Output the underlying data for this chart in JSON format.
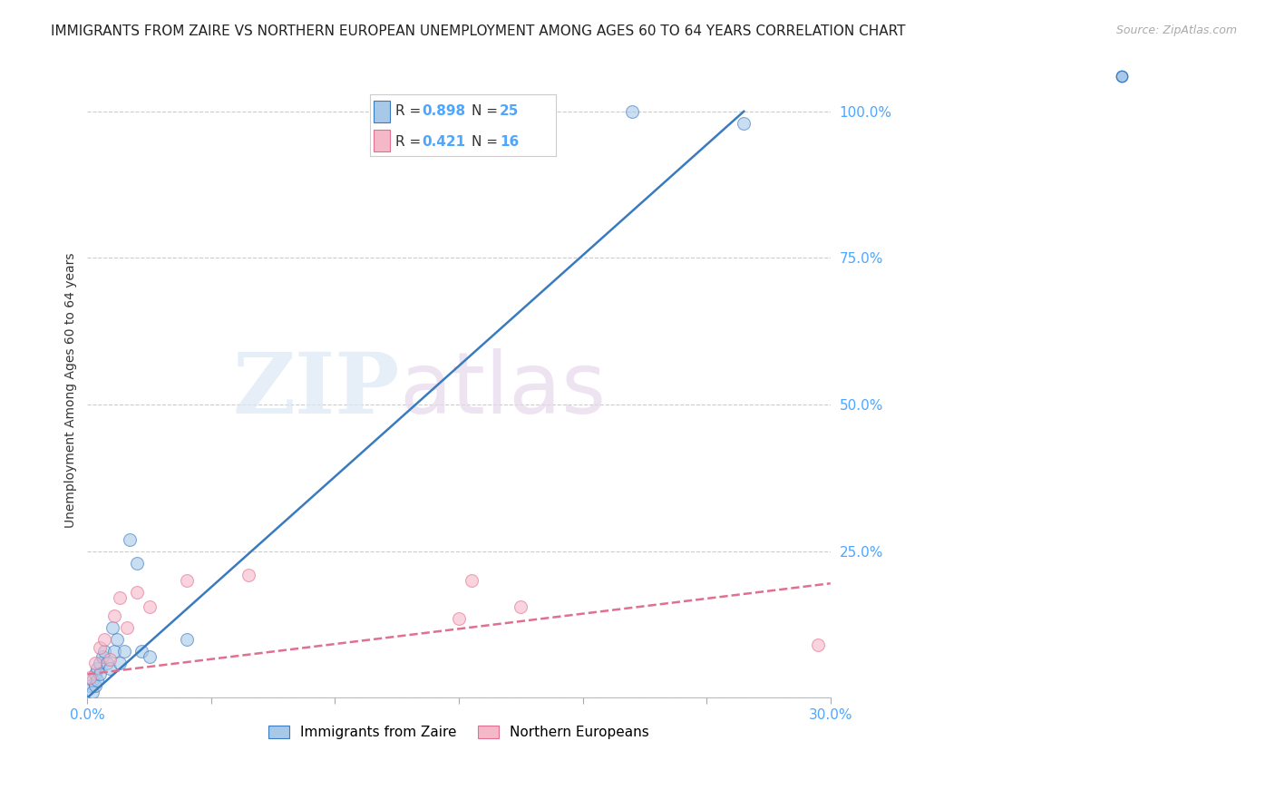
{
  "title": "IMMIGRANTS FROM ZAIRE VS NORTHERN EUROPEAN UNEMPLOYMENT AMONG AGES 60 TO 64 YEARS CORRELATION CHART",
  "source": "Source: ZipAtlas.com",
  "tick_color": "#4da6ff",
  "ylabel": "Unemployment Among Ages 60 to 64 years",
  "x_tick_labels_shown": [
    "0.0%",
    "",
    "",
    "",
    "",
    "",
    "30.0%"
  ],
  "x_tick_values": [
    0.0,
    0.05,
    0.1,
    0.15,
    0.2,
    0.25,
    0.3
  ],
  "y_tick_labels": [
    "",
    "25.0%",
    "50.0%",
    "75.0%",
    "100.0%"
  ],
  "y_tick_values": [
    0.0,
    0.25,
    0.5,
    0.75,
    1.0
  ],
  "xlim": [
    0.0,
    0.3
  ],
  "ylim": [
    0.0,
    1.05
  ],
  "blue_R": "0.898",
  "blue_N": "25",
  "pink_R": "0.421",
  "pink_N": "16",
  "blue_scatter_x": [
    0.001,
    0.002,
    0.002,
    0.003,
    0.003,
    0.004,
    0.004,
    0.005,
    0.005,
    0.006,
    0.007,
    0.008,
    0.009,
    0.01,
    0.011,
    0.012,
    0.013,
    0.015,
    0.017,
    0.02,
    0.022,
    0.025,
    0.04,
    0.22,
    0.265
  ],
  "blue_scatter_y": [
    0.02,
    0.01,
    0.03,
    0.02,
    0.04,
    0.05,
    0.03,
    0.06,
    0.04,
    0.07,
    0.08,
    0.06,
    0.05,
    0.12,
    0.08,
    0.1,
    0.06,
    0.08,
    0.27,
    0.23,
    0.08,
    0.07,
    0.1,
    1.0,
    0.98
  ],
  "pink_scatter_x": [
    0.001,
    0.003,
    0.005,
    0.007,
    0.009,
    0.011,
    0.013,
    0.016,
    0.02,
    0.025,
    0.04,
    0.065,
    0.15,
    0.155,
    0.175,
    0.295
  ],
  "pink_scatter_y": [
    0.035,
    0.06,
    0.085,
    0.1,
    0.065,
    0.14,
    0.17,
    0.12,
    0.18,
    0.155,
    0.2,
    0.21,
    0.135,
    0.2,
    0.155,
    0.09
  ],
  "blue_line_x": [
    0.0,
    0.265
  ],
  "blue_line_y": [
    0.0,
    1.0
  ],
  "pink_line_x": [
    0.0,
    0.3
  ],
  "pink_line_y": [
    0.04,
    0.195
  ],
  "blue_scatter_color": "#a8c8e8",
  "blue_line_color": "#3a7abf",
  "pink_scatter_color": "#f5b8c8",
  "pink_line_color": "#e07090",
  "watermark_zip": "ZIP",
  "watermark_atlas": "atlas",
  "background_color": "#ffffff",
  "grid_color": "#cccccc",
  "title_fontsize": 11,
  "axis_label_fontsize": 10,
  "tick_fontsize": 11,
  "legend_label_blue": "Immigrants from Zaire",
  "legend_label_pink": "Northern Europeans"
}
